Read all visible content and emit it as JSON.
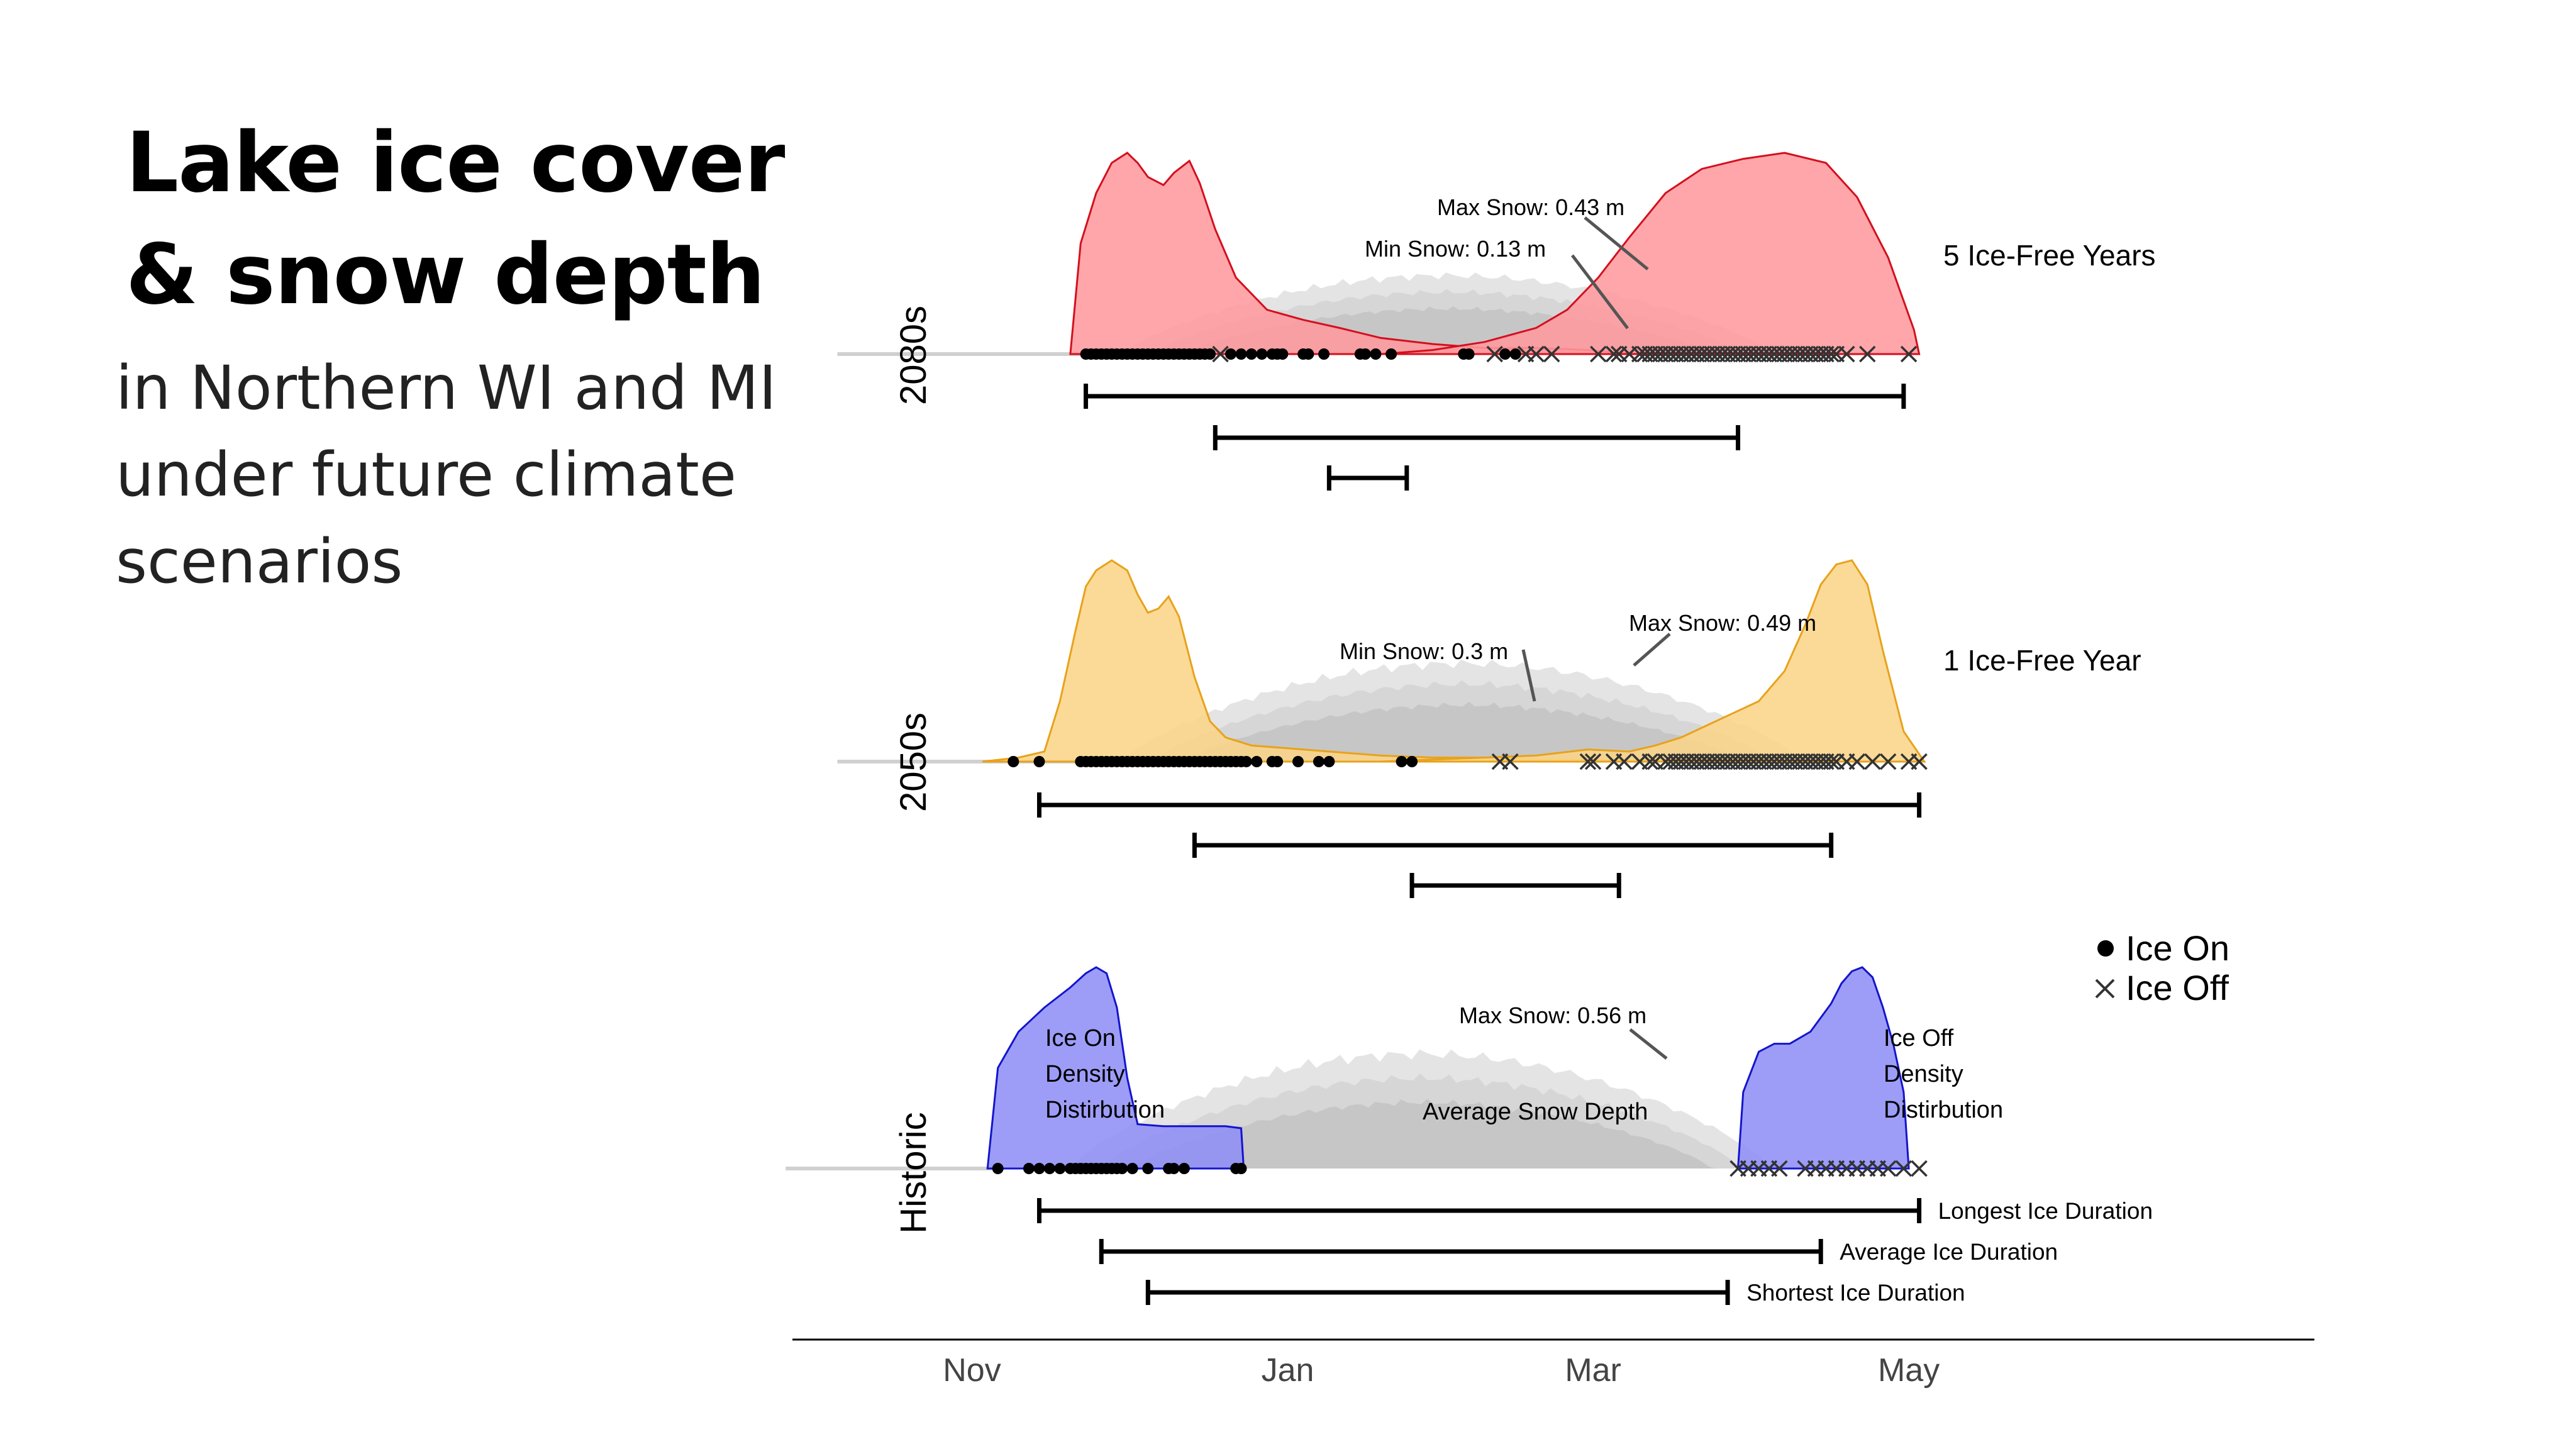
{
  "heading": {
    "title_line1": "Lake ice cover",
    "title_line2": "& snow depth",
    "subtitle_line1": "in Northern WI and MI",
    "subtitle_line2": "under future climate",
    "subtitle_line3": "scenarios"
  },
  "chart_data": {
    "type": "area",
    "title": "",
    "x_axis": {
      "unit": "day of season (0 = Oct 1)",
      "ticks": [
        {
          "label": "Nov",
          "x": 31
        },
        {
          "label": "Jan",
          "x": 92
        },
        {
          "label": "Mar",
          "x": 151
        },
        {
          "label": "May",
          "x": 212
        }
      ],
      "xlim": [
        0,
        298
      ]
    },
    "legend": {
      "placement": "right of Historic panel",
      "items": [
        {
          "symbol": "dot",
          "label": "Ice On"
        },
        {
          "symbol": "cross",
          "label": "Ice Off"
        }
      ]
    },
    "colors": {
      "2080s": "#ff9a9e",
      "2080s_line": "#d40f1e",
      "2050s": "#fbd58a",
      "2050s_line": "#e8a21a",
      "Historic": "#8f8ff7",
      "Historic_line": "#1414cc",
      "snow": "#c8c8c8"
    },
    "panels": [
      {
        "name": "2080s",
        "note": "5 Ice-Free Years",
        "snow_annotations": [
          {
            "label": "Max Snow: 0.43 m",
            "x": 130
          },
          {
            "label": "Min Snow: 0.13 m",
            "x": 128
          }
        ],
        "ice_on_density": {
          "x": [
            50,
            52,
            55,
            58,
            61,
            63,
            65,
            68,
            70,
            73,
            75,
            78,
            82,
            88,
            95,
            102,
            110,
            120,
            130,
            140,
            150,
            160
          ],
          "y": [
            0,
            0.55,
            0.8,
            0.95,
            1.0,
            0.95,
            0.88,
            0.84,
            0.9,
            0.96,
            0.85,
            0.62,
            0.38,
            0.22,
            0.17,
            0.13,
            0.08,
            0.05,
            0.03,
            0.03,
            0.02,
            0
          ]
        },
        "ice_off_density": {
          "x": [
            110,
            120,
            130,
            140,
            146,
            152,
            158,
            165,
            172,
            180,
            188,
            196,
            202,
            208,
            213,
            214
          ],
          "y": [
            0,
            0.02,
            0.06,
            0.13,
            0.22,
            0.38,
            0.58,
            0.8,
            0.92,
            0.97,
            1.0,
            0.95,
            0.78,
            0.48,
            0.12,
            0
          ]
        },
        "ice_on_dates": [
          53,
          54,
          55,
          56,
          57,
          58,
          59,
          60,
          61,
          62,
          63,
          64,
          65,
          66,
          67,
          68,
          69,
          70,
          71,
          72,
          73,
          74,
          75,
          76,
          77,
          81,
          83,
          85,
          87,
          89,
          90,
          91,
          95,
          96,
          99,
          106,
          107,
          109,
          112,
          126,
          127,
          134,
          136
        ],
        "ice_off_dates": [
          79,
          132,
          138,
          140,
          143,
          152,
          155,
          156,
          158,
          160,
          161,
          162,
          163,
          164,
          165,
          166,
          167,
          168,
          169,
          170,
          171,
          172,
          173,
          174,
          175,
          176,
          177,
          178,
          179,
          180,
          181,
          182,
          183,
          184,
          185,
          186,
          187,
          188,
          189,
          190,
          191,
          192,
          193,
          194,
          195,
          196,
          197,
          198,
          200,
          204,
          212
        ],
        "duration_bars": [
          {
            "kind": "Longest Ice Duration",
            "start": 53,
            "end": 211
          },
          {
            "kind": "Average Ice Duration",
            "start": 78,
            "end": 179
          },
          {
            "kind": "Shortest Ice Duration",
            "start": 100,
            "end": 115
          }
        ]
      },
      {
        "name": "2050s",
        "note": "1 Ice-Free Year",
        "snow_annotations": [
          {
            "label": "Min Snow: 0.3 m",
            "x": 114
          },
          {
            "label": "Max Snow: 0.49 m",
            "x": 149
          }
        ],
        "ice_on_density": {
          "x": [
            33,
            40,
            45,
            48,
            51,
            53,
            55,
            58,
            61,
            63,
            65,
            67,
            69,
            71,
            74,
            77,
            80,
            85,
            90,
            95,
            100,
            105,
            110,
            120,
            130,
            140,
            150,
            160
          ],
          "y": [
            0,
            0.02,
            0.05,
            0.3,
            0.65,
            0.87,
            0.95,
            1.0,
            0.95,
            0.83,
            0.74,
            0.76,
            0.82,
            0.72,
            0.42,
            0.2,
            0.12,
            0.08,
            0.07,
            0.06,
            0.05,
            0.04,
            0.03,
            0.02,
            0.02,
            0.01,
            0.01,
            0
          ]
        },
        "ice_off_density": {
          "x": [
            110,
            120,
            130,
            140,
            150,
            158,
            163,
            168,
            173,
            178,
            183,
            188,
            192,
            195,
            198,
            201,
            204,
            207,
            211,
            215
          ],
          "y": [
            0,
            0.01,
            0.02,
            0.03,
            0.06,
            0.05,
            0.08,
            0.12,
            0.18,
            0.24,
            0.3,
            0.45,
            0.68,
            0.88,
            0.98,
            1.0,
            0.88,
            0.55,
            0.15,
            0
          ]
        },
        "ice_on_dates": [
          39,
          44,
          52,
          53,
          54,
          55,
          56,
          57,
          58,
          59,
          60,
          61,
          62,
          63,
          64,
          65,
          66,
          67,
          68,
          69,
          70,
          71,
          72,
          73,
          74,
          75,
          76,
          77,
          78,
          79,
          80,
          81,
          82,
          83,
          84,
          86,
          89,
          90,
          94,
          98,
          100,
          114,
          116
        ],
        "ice_off_dates": [
          133,
          135,
          150,
          151,
          155,
          157,
          160,
          162,
          163,
          165,
          166,
          167,
          168,
          169,
          170,
          171,
          172,
          173,
          174,
          175,
          176,
          177,
          178,
          179,
          180,
          181,
          182,
          183,
          184,
          185,
          186,
          187,
          188,
          189,
          190,
          191,
          192,
          193,
          194,
          195,
          196,
          197,
          198,
          200,
          202,
          205,
          208,
          212,
          214
        ],
        "duration_bars": [
          {
            "kind": "Longest Ice Duration",
            "start": 44,
            "end": 214
          },
          {
            "kind": "Average Ice Duration",
            "start": 74,
            "end": 197
          },
          {
            "kind": "Shortest Ice Duration",
            "start": 116,
            "end": 156
          }
        ]
      },
      {
        "name": "Historic",
        "note": "",
        "snow_annotations": [
          {
            "label": "Max Snow: 0.56 m",
            "x": 132
          }
        ],
        "region_labels": [
          {
            "label": [
              "Ice On",
              "Density",
              "Distirbution"
            ],
            "x": 46
          },
          {
            "label": [
              "Average Snow Depth"
            ],
            "x": 120
          },
          {
            "label": [
              "Ice Off",
              "Density",
              "Distirbution"
            ],
            "x": 207
          }
        ],
        "ice_on_density": {
          "x": [
            34,
            36,
            40,
            45,
            50,
            53,
            55,
            57,
            59,
            61,
            63,
            68,
            75,
            80,
            83,
            83.5
          ],
          "y": [
            0,
            0.5,
            0.68,
            0.8,
            0.9,
            0.97,
            1.0,
            0.97,
            0.8,
            0.45,
            0.22,
            0.21,
            0.21,
            0.21,
            0.2,
            0
          ]
        },
        "ice_off_density": {
          "x": [
            179,
            180,
            183,
            186,
            189,
            193,
            197,
            199,
            201,
            203,
            205,
            207,
            209,
            211,
            212
          ],
          "y": [
            0,
            0.38,
            0.58,
            0.62,
            0.62,
            0.68,
            0.82,
            0.92,
            0.98,
            1.0,
            0.95,
            0.8,
            0.62,
            0.38,
            0
          ]
        },
        "ice_on_dates": [
          36,
          42,
          44,
          46,
          48,
          50,
          51,
          52,
          53,
          54,
          55,
          56,
          57,
          58,
          59,
          60,
          62,
          65,
          69,
          70,
          72,
          82,
          83
        ],
        "ice_off_dates": [
          179,
          181,
          183,
          185,
          187,
          192,
          194,
          196,
          198,
          200,
          202,
          204,
          206,
          208,
          211,
          214
        ],
        "duration_bars": [
          {
            "kind": "Longest Ice Duration",
            "start": 44,
            "end": 214
          },
          {
            "kind": "Average Ice Duration",
            "start": 56,
            "end": 195
          },
          {
            "kind": "Shortest Ice Duration",
            "start": 65,
            "end": 177
          }
        ]
      }
    ]
  }
}
